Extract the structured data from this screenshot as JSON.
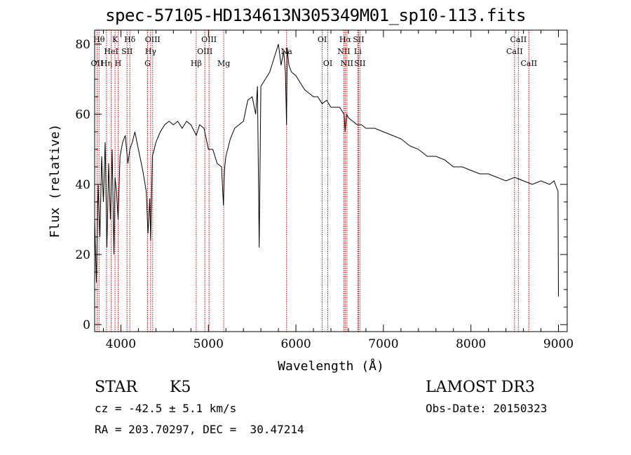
{
  "chart_data": {
    "type": "line",
    "title": "spec-57105-HD134613N305349M01_sp10-113.fits",
    "xlabel": "Wavelength (Å)",
    "ylabel": "Flux (relative)",
    "xlim": [
      3700,
      9100
    ],
    "ylim": [
      -2,
      84
    ],
    "xticks": [
      4000,
      5000,
      6000,
      7000,
      8000,
      9000
    ],
    "yticks": [
      0,
      20,
      40,
      60,
      80
    ],
    "grid": false,
    "series": [
      {
        "x": [
          3700,
          3720,
          3740,
          3760,
          3780,
          3800,
          3820,
          3840,
          3860,
          3880,
          3900,
          3920,
          3933,
          3950,
          3968,
          3990,
          4020,
          4050,
          4080,
          4102,
          4130,
          4160,
          4200,
          4250,
          4290,
          4310,
          4330,
          4340,
          4360,
          4400,
          4450,
          4500,
          4550,
          4600,
          4650,
          4700,
          4750,
          4800,
          4861,
          4900,
          4950,
          5000,
          5050,
          5100,
          5150,
          5172,
          5183,
          5200,
          5250,
          5300,
          5350,
          5400,
          5450,
          5500,
          5540,
          5560,
          5580,
          5600,
          5650,
          5700,
          5750,
          5800,
          5830,
          5860,
          5880,
          5893,
          5900,
          5920,
          5950,
          6000,
          6050,
          6100,
          6150,
          6200,
          6250,
          6300,
          6350,
          6400,
          6450,
          6500,
          6550,
          6563,
          6580,
          6600,
          6650,
          6700,
          6750,
          6800,
          6900,
          7000,
          7100,
          7200,
          7300,
          7400,
          7500,
          7600,
          7700,
          7800,
          7900,
          8000,
          8100,
          8200,
          8300,
          8400,
          8500,
          8600,
          8700,
          8800,
          8900,
          8950,
          8980,
          8995,
          9000
        ],
        "y": [
          30,
          12,
          40,
          25,
          48,
          35,
          52,
          22,
          46,
          30,
          50,
          20,
          42,
          38,
          30,
          48,
          52,
          54,
          46,
          50,
          52,
          55,
          50,
          44,
          38,
          26,
          36,
          24,
          48,
          52,
          55,
          57,
          58,
          57,
          58,
          56,
          58,
          57,
          54,
          57,
          56,
          50,
          50,
          46,
          45,
          34,
          44,
          48,
          53,
          56,
          57,
          58,
          64,
          65,
          60,
          68,
          22,
          68,
          70,
          72,
          76,
          80,
          74,
          78,
          72,
          57,
          79,
          74,
          72,
          71,
          69,
          67,
          66,
          65,
          65,
          63,
          64,
          62,
          62,
          62,
          60,
          55,
          60,
          59,
          58,
          57,
          57,
          56,
          56,
          55,
          54,
          53,
          51,
          50,
          48,
          48,
          47,
          45,
          45,
          44,
          43,
          43,
          42,
          41,
          42,
          41,
          40,
          41,
          40,
          41,
          39,
          38,
          8
        ]
      }
    ],
    "lines": [
      {
        "x": 3727,
        "labels": [
          "OII"
        ],
        "row": 2
      },
      {
        "x": 3750,
        "labels": [
          "Hθ"
        ],
        "row": 0
      },
      {
        "x": 3835,
        "labels": [
          "Hη"
        ],
        "row": 2
      },
      {
        "x": 3889,
        "labels": [
          "HeI"
        ],
        "row": 1
      },
      {
        "x": 3933,
        "labels": [
          "K"
        ],
        "row": 0
      },
      {
        "x": 3968,
        "labels": [
          "H"
        ],
        "row": 2
      },
      {
        "x": 4070,
        "labels": [
          "SII"
        ],
        "row": 1
      },
      {
        "x": 4102,
        "labels": [
          "Hδ"
        ],
        "row": 0
      },
      {
        "x": 4305,
        "labels": [
          "G"
        ],
        "row": 2
      },
      {
        "x": 4340,
        "labels": [
          "Hγ"
        ],
        "row": 1
      },
      {
        "x": 4363,
        "labels": [
          "OIII"
        ],
        "row": 0
      },
      {
        "x": 4861,
        "labels": [
          "Hβ"
        ],
        "row": 2
      },
      {
        "x": 4959,
        "labels": [
          "OIII"
        ],
        "row": 1
      },
      {
        "x": 5007,
        "labels": [
          "OIII"
        ],
        "row": 0
      },
      {
        "x": 5175,
        "labels": [
          "Mg"
        ],
        "row": 2
      },
      {
        "x": 5893,
        "labels": [
          "Na"
        ],
        "row": 1
      },
      {
        "x": 6300,
        "labels": [
          "OI"
        ],
        "row": 0
      },
      {
        "x": 6364,
        "labels": [
          "OI"
        ],
        "row": 2
      },
      {
        "x": 6548,
        "labels": [
          "NII"
        ],
        "row": 1
      },
      {
        "x": 6563,
        "labels": [
          "Hα"
        ],
        "row": 0
      },
      {
        "x": 6583,
        "labels": [
          "NII"
        ],
        "row": 2
      },
      {
        "x": 6707,
        "labels": [
          "Li"
        ],
        "row": 1
      },
      {
        "x": 6716,
        "labels": [
          "SII"
        ],
        "row": 0
      },
      {
        "x": 6731,
        "labels": [
          "SII"
        ],
        "row": 2
      },
      {
        "x": 8498,
        "labels": [
          "CaII"
        ],
        "row": 1
      },
      {
        "x": 8542,
        "labels": [
          "CaII"
        ],
        "row": 0
      },
      {
        "x": 8662,
        "labels": [
          "CaII"
        ],
        "row": 2
      }
    ]
  },
  "info": {
    "class": "STAR",
    "subclass": "K5",
    "survey": "LAMOST DR3",
    "cz": "cz = -42.5 ± 5.1 km/s",
    "obs_date": "Obs-Date: 20150323",
    "coords": "RA = 203.70297, DEC =  30.47214"
  },
  "colors": {
    "spectrum": "#000000",
    "line_markers": "#cc0000"
  }
}
